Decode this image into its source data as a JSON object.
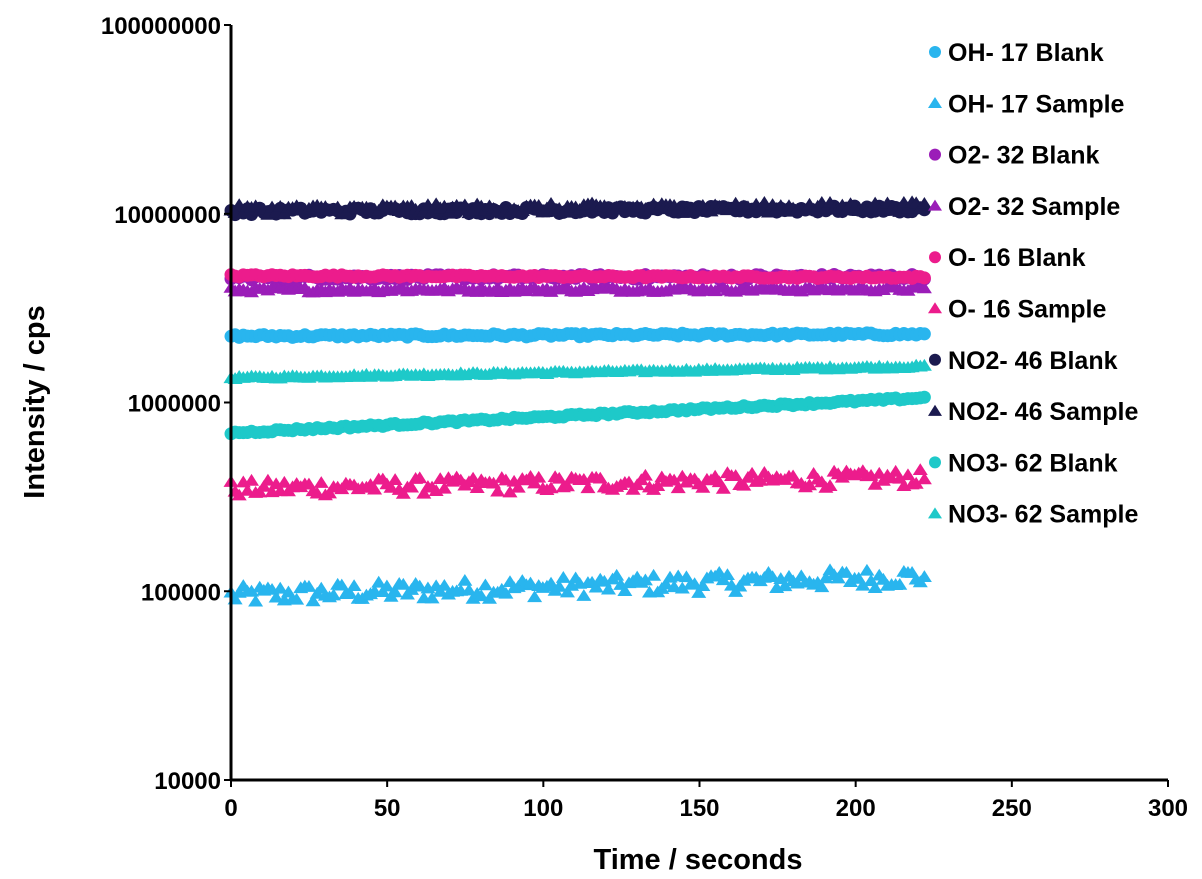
{
  "chart_data": {
    "type": "scatter",
    "title": "",
    "xlabel": "Time / seconds",
    "ylabel": "Intensity / cps",
    "xlim": [
      0,
      300
    ],
    "ylim": [
      10000,
      100000000
    ],
    "yscale": "log",
    "grid": false,
    "legend_position": "right",
    "x_ticks": [
      "0",
      "50",
      "100",
      "150",
      "200",
      "250",
      "300"
    ],
    "y_ticks": [
      "10000",
      "100000",
      "1000000",
      "10000000",
      "100000000"
    ],
    "series": [
      {
        "name": "OH- 17 Blank",
        "marker": "circle",
        "color": "#29B5EE",
        "x_range": [
          0,
          222
        ],
        "start": 2250000,
        "end": 2300000,
        "noise": 0.02
      },
      {
        "name": "OH- 17 Sample",
        "marker": "triangle",
        "color": "#29B5EE",
        "x_range": [
          0,
          222
        ],
        "start": 95000,
        "end": 120000,
        "noise": 0.12
      },
      {
        "name": "O2- 32 Blank",
        "marker": "circle",
        "color": "#9B1DB8",
        "x_range": [
          0,
          222
        ],
        "start": 4600000,
        "end": 4650000,
        "noise": 0.03
      },
      {
        "name": "O2- 32 Sample",
        "marker": "triangle",
        "color": "#9B1DB8",
        "x_range": [
          0,
          222
        ],
        "start": 3950000,
        "end": 4000000,
        "noise": 0.03
      },
      {
        "name": "O- 16 Blank",
        "marker": "circle",
        "color": "#EC1C8C",
        "x_range": [
          0,
          222
        ],
        "start": 4700000,
        "end": 4600000,
        "noise": 0.015
      },
      {
        "name": "O- 16 Sample",
        "marker": "triangle",
        "color": "#EC1C8C",
        "x_range": [
          0,
          222
        ],
        "start": 350000,
        "end": 400000,
        "noise": 0.1
      },
      {
        "name": "NO2- 46 Blank",
        "marker": "circle",
        "color": "#1B1A4F",
        "x_range": [
          0,
          222
        ],
        "start": 10300000,
        "end": 10600000,
        "noise": 0.04
      },
      {
        "name": "NO2- 46 Sample",
        "marker": "triangle",
        "color": "#1B1A4F",
        "x_range": [
          0,
          222
        ],
        "start": 10500000,
        "end": 10900000,
        "noise": 0.06
      },
      {
        "name": "NO3- 62 Blank",
        "marker": "circle",
        "color": "#1EC9C9",
        "x_range": [
          0,
          222
        ],
        "start": 690000,
        "end": 1060000,
        "noise": 0.015
      },
      {
        "name": "NO3- 62 Sample",
        "marker": "triangle",
        "color": "#1EC9C9",
        "x_range": [
          0,
          222
        ],
        "start": 1350000,
        "end": 1550000,
        "noise": 0.015
      }
    ]
  }
}
